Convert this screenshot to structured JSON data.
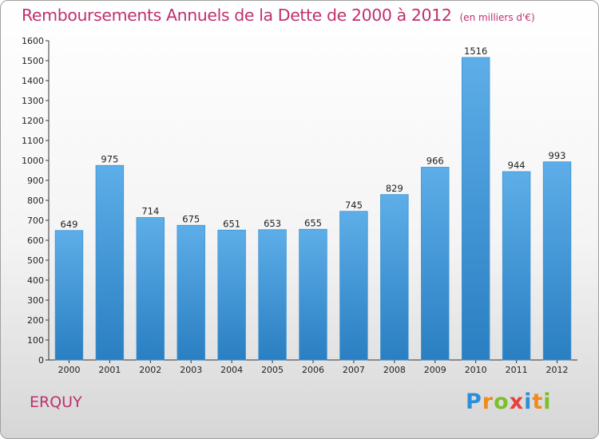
{
  "title": "Remboursements Annuels de la Dette de 2000 à 2012",
  "unit": "(en milliers d'€)",
  "commune": "ERQUY",
  "logo": {
    "letters": [
      "P",
      "r",
      "o",
      "x",
      "i",
      "t",
      "i"
    ],
    "colors": [
      "#2e8fd8",
      "#f08a1c",
      "#7cbf2a",
      "#e8413c",
      "#2e8fd8",
      "#f08a1c",
      "#7cbf2a"
    ]
  },
  "colors": {
    "bar_top": "#5daee8",
    "bar_bottom": "#2a7fc2",
    "title": "#c0306e"
  },
  "chart_data": {
    "type": "bar",
    "categories": [
      "2000",
      "2001",
      "2002",
      "2003",
      "2004",
      "2005",
      "2006",
      "2007",
      "2008",
      "2009",
      "2010",
      "2011",
      "2012"
    ],
    "values": [
      649,
      975,
      714,
      675,
      651,
      653,
      655,
      745,
      829,
      966,
      1516,
      944,
      993
    ],
    "data_labels": [
      "649",
      "975",
      "714",
      "675",
      "651",
      "653",
      "655",
      "745",
      "829",
      "966",
      "1516",
      "944",
      "993"
    ],
    "ylim": [
      0,
      1600
    ],
    "yticks": [
      0,
      100,
      200,
      300,
      400,
      500,
      600,
      700,
      800,
      900,
      1000,
      1100,
      1200,
      1300,
      1400,
      1500,
      1600
    ],
    "grid": false
  }
}
